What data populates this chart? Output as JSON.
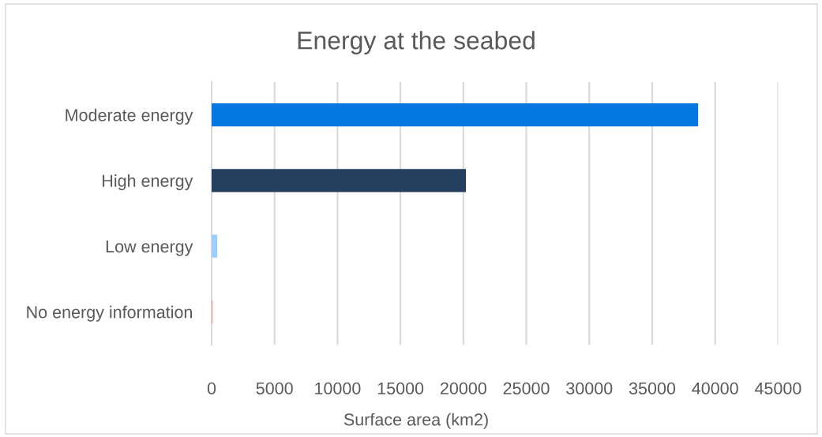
{
  "chart_data": {
    "type": "bar",
    "orientation": "horizontal",
    "title": "Energy at the seabed",
    "xlabel": "Surface area (km2)",
    "categories": [
      "Moderate energy",
      "High energy",
      "Low energy",
      "No energy information"
    ],
    "values": [
      38650,
      20200,
      450,
      80
    ],
    "colors": [
      "#0478e0",
      "#253f5f",
      "#9dcffd",
      "#f09a9a"
    ],
    "xlim": [
      0,
      45000
    ],
    "xticks": [
      0,
      5000,
      10000,
      15000,
      20000,
      25000,
      30000,
      35000,
      40000,
      45000
    ],
    "grid": "x"
  }
}
